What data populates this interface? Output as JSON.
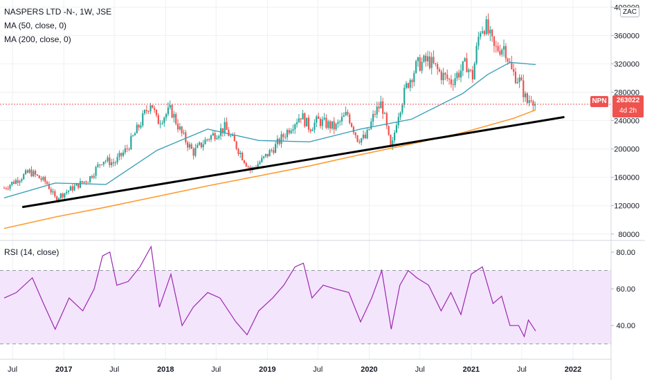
{
  "legend": {
    "symbol_line": "NASPERS LTD -N-, 1W, JSE",
    "ma50": "MA (50, close, 0)",
    "ma200": "MA (200, close, 0)",
    "rsi": "RSI (14, close)"
  },
  "currency_badge": "ZAC",
  "last_price": {
    "ticker": "NPN",
    "value": "263022",
    "countdown": "4d 2h"
  },
  "colors": {
    "up": "#26a69a",
    "down": "#ef5350",
    "ma50": "#3ba0b8",
    "ma200": "#ff9a2e",
    "trendline": "#000000",
    "rsi": "#9c27b0",
    "rsi_band": "#f3e5fc",
    "price_line": "#ef5350"
  },
  "chart_data": [
    {
      "type": "candlestick",
      "title": "NASPERS LTD -N-, 1W, JSE",
      "y_ticks": [
        80000,
        120000,
        160000,
        200000,
        240000,
        280000,
        320000,
        360000,
        400000
      ],
      "ylim": [
        72000,
        410000
      ],
      "x_ticks": [
        "Jul",
        "2017",
        "Jul",
        "2018",
        "Jul",
        "2019",
        "Jul",
        "2020",
        "Jul",
        "2021",
        "Jul",
        "2022"
      ],
      "price_anchors": [
        [
          "2016-06-01",
          145000
        ],
        [
          "2016-09-01",
          168000
        ],
        [
          "2016-11-01",
          152000
        ],
        [
          "2016-12-01",
          130000
        ],
        [
          "2017-02-01",
          145000
        ],
        [
          "2017-04-01",
          158000
        ],
        [
          "2017-05-20",
          185000
        ],
        [
          "2017-07-01",
          180000
        ],
        [
          "2017-08-15",
          200000
        ],
        [
          "2017-10-01",
          235000
        ],
        [
          "2017-11-10",
          268000
        ],
        [
          "2017-12-01",
          238000
        ],
        [
          "2018-01-20",
          255000
        ],
        [
          "2018-03-01",
          220000
        ],
        [
          "2018-04-10",
          195000
        ],
        [
          "2018-06-01",
          215000
        ],
        [
          "2018-08-01",
          230000
        ],
        [
          "2018-09-10",
          205000
        ],
        [
          "2018-11-01",
          170000
        ],
        [
          "2018-12-15",
          185000
        ],
        [
          "2019-02-01",
          205000
        ],
        [
          "2019-04-01",
          235000
        ],
        [
          "2019-05-01",
          248000
        ],
        [
          "2019-06-01",
          230000
        ],
        [
          "2019-07-01",
          240000
        ],
        [
          "2019-09-01",
          230000
        ],
        [
          "2019-10-15",
          250000
        ],
        [
          "2019-11-20",
          215000
        ],
        [
          "2019-12-20",
          215000
        ],
        [
          "2020-01-20",
          250000
        ],
        [
          "2020-02-15",
          265000
        ],
        [
          "2020-03-20",
          195000
        ],
        [
          "2020-04-10",
          245000
        ],
        [
          "2020-05-15",
          290000
        ],
        [
          "2020-06-20",
          318000
        ],
        [
          "2020-08-01",
          325000
        ],
        [
          "2020-09-15",
          305000
        ],
        [
          "2020-10-20",
          295000
        ],
        [
          "2020-12-15",
          320000
        ],
        [
          "2021-01-05",
          300000
        ],
        [
          "2021-02-01",
          370000
        ],
        [
          "2021-02-20",
          375000
        ],
        [
          "2021-03-25",
          340000
        ],
        [
          "2021-05-01",
          345000
        ],
        [
          "2021-05-25",
          310000
        ],
        [
          "2021-06-25",
          295000
        ],
        [
          "2021-07-20",
          265000
        ],
        [
          "2021-08-05",
          275000
        ],
        [
          "2021-08-20",
          263022
        ]
      ],
      "ma50_anchors": [
        [
          "2016-06-01",
          131000
        ],
        [
          "2016-12-01",
          152000
        ],
        [
          "2017-06-01",
          150000
        ],
        [
          "2017-12-01",
          198000
        ],
        [
          "2018-06-01",
          228000
        ],
        [
          "2018-12-01",
          212000
        ],
        [
          "2019-06-01",
          210000
        ],
        [
          "2019-12-01",
          228000
        ],
        [
          "2020-06-01",
          242000
        ],
        [
          "2020-12-01",
          278000
        ],
        [
          "2021-03-01",
          305000
        ],
        [
          "2021-05-20",
          322000
        ],
        [
          "2021-08-20",
          319000
        ]
      ],
      "ma200_anchors": [
        [
          "2016-06-01",
          88000
        ],
        [
          "2016-12-01",
          104000
        ],
        [
          "2017-06-01",
          118000
        ],
        [
          "2017-12-01",
          133000
        ],
        [
          "2018-06-01",
          148000
        ],
        [
          "2018-12-01",
          162000
        ],
        [
          "2019-06-01",
          176000
        ],
        [
          "2019-12-01",
          192000
        ],
        [
          "2020-06-01",
          207000
        ],
        [
          "2020-12-01",
          223000
        ],
        [
          "2021-06-01",
          243000
        ],
        [
          "2021-08-20",
          255000
        ]
      ],
      "trendline": [
        [
          "2016-08-05",
          118000
        ],
        [
          "2021-12-01",
          245000
        ]
      ],
      "last_close": 263022
    },
    {
      "type": "line",
      "title": "RSI (14, close)",
      "y_ticks": [
        40,
        60,
        80
      ],
      "ylim": [
        22,
        86
      ],
      "band": [
        30,
        70
      ],
      "rsi_anchors": [
        [
          "2016-06-01",
          55
        ],
        [
          "2016-07-15",
          58
        ],
        [
          "2016-09-10",
          66
        ],
        [
          "2016-10-20",
          52
        ],
        [
          "2016-12-01",
          38
        ],
        [
          "2017-01-20",
          55
        ],
        [
          "2017-03-10",
          48
        ],
        [
          "2017-04-20",
          60
        ],
        [
          "2017-05-20",
          78
        ],
        [
          "2017-06-15",
          80
        ],
        [
          "2017-07-10",
          62
        ],
        [
          "2017-08-20",
          64
        ],
        [
          "2017-10-01",
          72
        ],
        [
          "2017-11-10",
          83
        ],
        [
          "2017-12-10",
          50
        ],
        [
          "2018-01-20",
          68
        ],
        [
          "2018-03-01",
          40
        ],
        [
          "2018-04-10",
          50
        ],
        [
          "2018-06-01",
          58
        ],
        [
          "2018-07-15",
          55
        ],
        [
          "2018-09-10",
          42
        ],
        [
          "2018-10-20",
          35
        ],
        [
          "2018-12-01",
          48
        ],
        [
          "2019-01-20",
          55
        ],
        [
          "2019-03-01",
          62
        ],
        [
          "2019-04-10",
          72
        ],
        [
          "2019-05-10",
          74
        ],
        [
          "2019-06-10",
          55
        ],
        [
          "2019-07-20",
          62
        ],
        [
          "2019-09-01",
          60
        ],
        [
          "2019-10-20",
          58
        ],
        [
          "2019-12-01",
          42
        ],
        [
          "2020-01-10",
          55
        ],
        [
          "2020-02-15",
          70
        ],
        [
          "2020-03-20",
          38
        ],
        [
          "2020-04-20",
          62
        ],
        [
          "2020-05-20",
          70
        ],
        [
          "2020-06-20",
          66
        ],
        [
          "2020-08-01",
          62
        ],
        [
          "2020-09-15",
          48
        ],
        [
          "2020-10-20",
          58
        ],
        [
          "2020-11-25",
          46
        ],
        [
          "2021-01-01",
          68
        ],
        [
          "2021-02-10",
          72
        ],
        [
          "2021-03-20",
          52
        ],
        [
          "2021-04-20",
          56
        ],
        [
          "2021-05-20",
          40
        ],
        [
          "2021-06-20",
          40
        ],
        [
          "2021-07-10",
          34
        ],
        [
          "2021-07-25",
          43
        ],
        [
          "2021-08-20",
          37
        ]
      ]
    }
  ]
}
